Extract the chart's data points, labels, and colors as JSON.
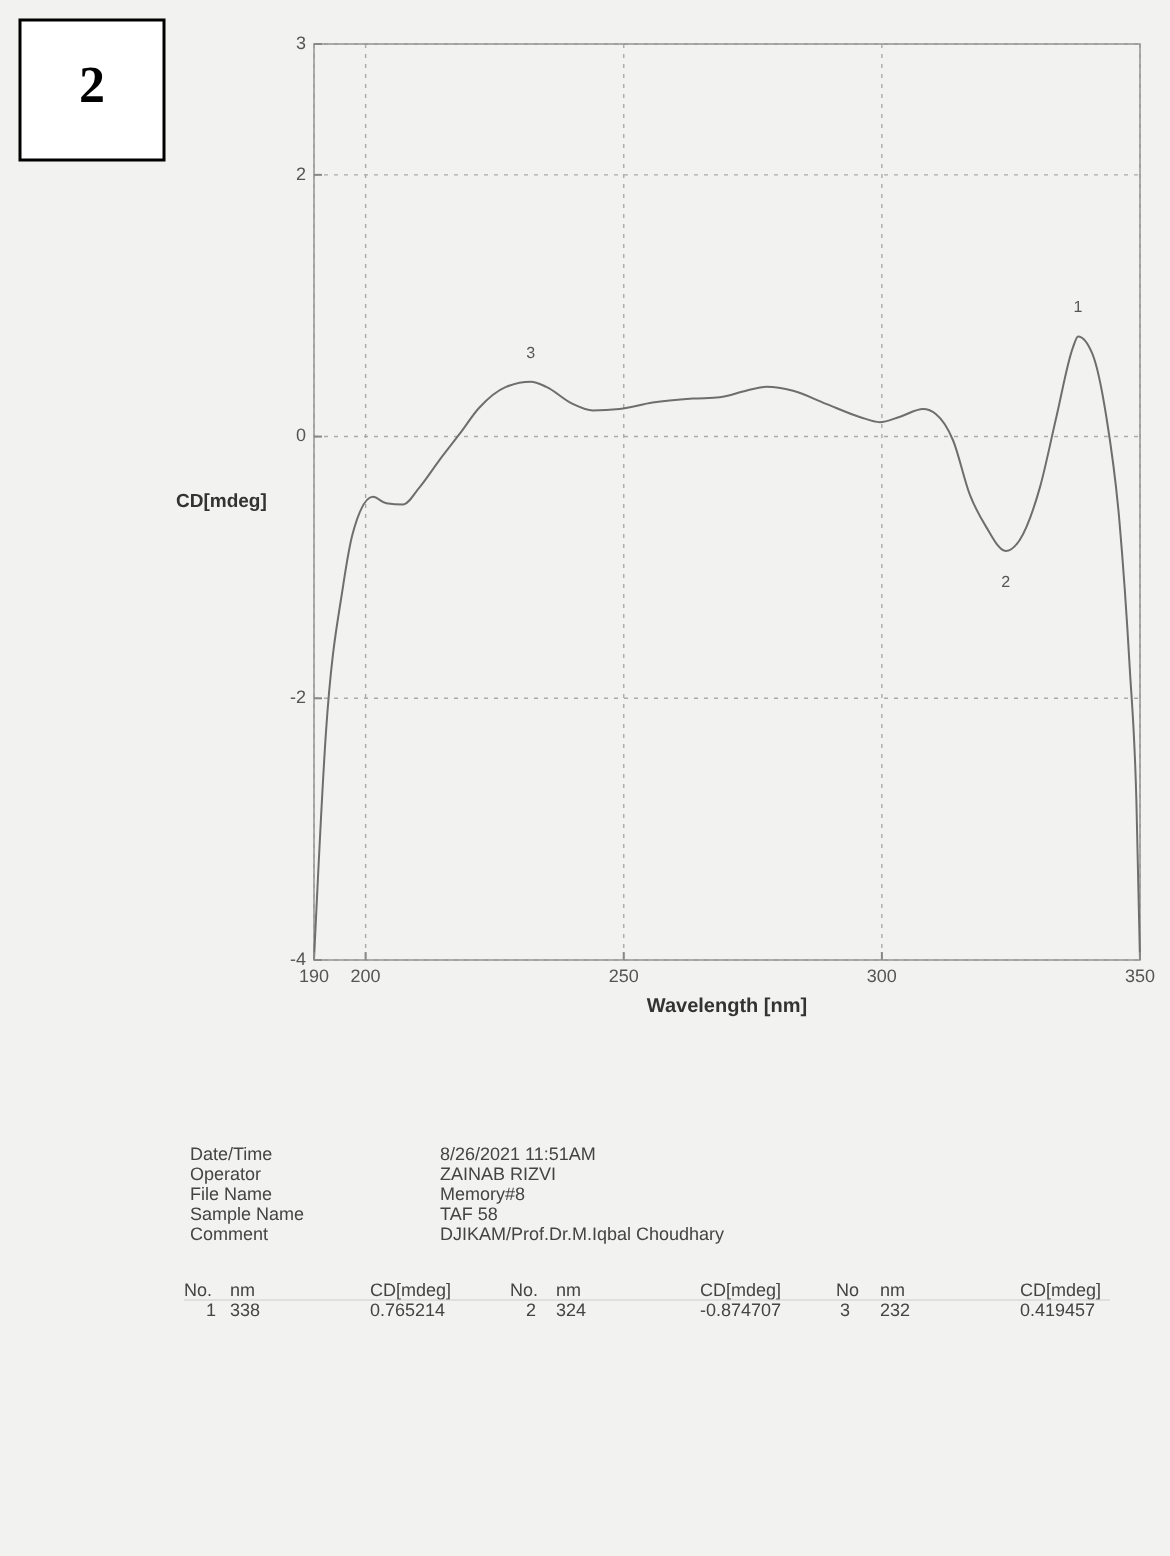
{
  "chart_data": {
    "type": "line",
    "xlabel": "Wavelength [nm]",
    "ylabel": "CD[mdeg]",
    "xlim": [
      190,
      350
    ],
    "xticks": [
      190,
      200,
      250,
      300,
      350
    ],
    "ylim": [
      -4,
      3
    ],
    "yticks": [
      -4,
      -2,
      0,
      2,
      3
    ],
    "grid": true,
    "series": [
      {
        "color": "#6e6e6e",
        "x": [
          190,
          192.3,
          195.6,
          197.5,
          201.4,
          204,
          207.2,
          210.4,
          214.3,
          218.2,
          222,
          227.2,
          232,
          235,
          240.1,
          244,
          249.2,
          255.6,
          263.4,
          268.6,
          273.7,
          277.6,
          282.8,
          289.2,
          295.7,
          299.6,
          303.4,
          308,
          310.5,
          313.8,
          317,
          320.2,
          324,
          326.7,
          330.6,
          333.8,
          337,
          338,
          340.8,
          343.4,
          346,
          348,
          349.3,
          350
        ],
        "values": [
          -4,
          -2.27,
          -1.15,
          -0.74,
          -0.46,
          -0.51,
          -0.52,
          -0.39,
          -0.18,
          0.02,
          0.22,
          0.38,
          0.419457,
          0.38,
          0.25,
          0.2,
          0.21,
          0.26,
          0.29,
          0.3,
          0.35,
          0.38,
          0.35,
          0.25,
          0.15,
          0.11,
          0.15,
          0.21,
          0.17,
          -0.03,
          -0.44,
          -0.69,
          -0.874707,
          -0.79,
          -0.39,
          0.15,
          0.68,
          0.765214,
          0.63,
          0.17,
          -0.64,
          -1.76,
          -2.78,
          -4
        ]
      }
    ],
    "annotations": [
      "2",
      "Date/Time",
      "8/26/2021 11:51AM",
      "Operator",
      "ZAINAB RIZVI",
      "File Name",
      "Memory#8",
      "Sample Name",
      "TAF 58",
      "Comment",
      "DJIKAM/Prof.Dr.M.Iqbal Choudhary",
      "No.",
      "nm",
      "CD[mdeg]",
      "No.",
      "nm",
      "CD[mdeg]",
      "No",
      "nm",
      "CD[mdeg]",
      "1",
      "338",
      "0.765214",
      "2",
      "324",
      "-0.874707",
      "3",
      "232",
      "0.419457",
      {
        "text": "1",
        "x": 338,
        "y": 0.765214
      },
      {
        "text": "2",
        "x": 324,
        "y": -0.874707
      },
      {
        "text": "3",
        "x": 232,
        "y": 0.419457
      }
    ]
  }
}
